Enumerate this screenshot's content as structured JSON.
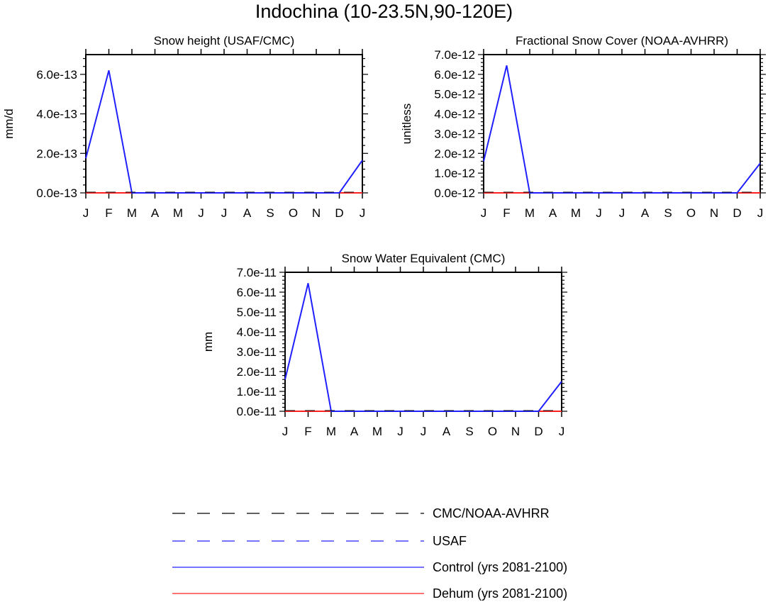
{
  "title": "Indochina (10-23.5N,90-120E)",
  "colors": {
    "obs": "#000000",
    "usaf": "#2020ff",
    "control": "#2020ff",
    "dehum": "#ff2020"
  },
  "legend": [
    {
      "label": "CMC/NOAA-AVHRR",
      "color": "#000000",
      "dash": true
    },
    {
      "label": "USAF",
      "color": "#2020ff",
      "dash": true
    },
    {
      "label": "Control (yrs 2081-2100)",
      "color": "#2020ff",
      "dash": false
    },
    {
      "label": "Dehum (yrs 2081-2100)",
      "color": "#ff2020",
      "dash": false
    }
  ],
  "chart_data": [
    {
      "type": "line",
      "title": "Snow height (USAF/CMC)",
      "ylabel": "mm/d",
      "categories": [
        "J",
        "F",
        "M",
        "A",
        "M",
        "J",
        "J",
        "A",
        "S",
        "O",
        "N",
        "D",
        "J"
      ],
      "yticks": [
        "0.0e-13",
        "2.0e-13",
        "4.0e-13",
        "6.0e-13"
      ],
      "ylim": [
        0,
        7e-13
      ],
      "series": [
        {
          "color": "control",
          "values": [
            1.75e-13,
            6.2e-13,
            0,
            0,
            0,
            0,
            0,
            0,
            0,
            0,
            0,
            0,
            1.65e-13
          ]
        },
        {
          "color": "dehum",
          "values": [
            0,
            0,
            0,
            0,
            0,
            0,
            0,
            0,
            0,
            0,
            0,
            0,
            0
          ]
        }
      ]
    },
    {
      "type": "line",
      "title": "Fractional Snow Cover (NOAA-AVHRR)",
      "ylabel": "unitless",
      "categories": [
        "J",
        "F",
        "M",
        "A",
        "M",
        "J",
        "J",
        "A",
        "S",
        "O",
        "N",
        "D",
        "J"
      ],
      "yticks": [
        "0.0e-12",
        "1.0e-12",
        "2.0e-12",
        "3.0e-12",
        "4.0e-12",
        "5.0e-12",
        "6.0e-12",
        "7.0e-12"
      ],
      "ylim": [
        0,
        7e-12
      ],
      "series": [
        {
          "color": "control",
          "values": [
            1.6e-12,
            6.45e-12,
            0,
            0,
            0,
            0,
            0,
            0,
            0,
            0,
            0,
            0,
            1.5e-12
          ]
        },
        {
          "color": "dehum",
          "values": [
            0,
            0,
            0,
            0,
            0,
            0,
            0,
            0,
            0,
            0,
            0,
            0,
            0
          ]
        }
      ]
    },
    {
      "type": "line",
      "title": "Snow Water Equivalent (CMC)",
      "ylabel": "mm",
      "categories": [
        "J",
        "F",
        "M",
        "A",
        "M",
        "J",
        "J",
        "A",
        "S",
        "O",
        "N",
        "D",
        "J"
      ],
      "yticks": [
        "0.0e-11",
        "1.0e-11",
        "2.0e-11",
        "3.0e-11",
        "4.0e-11",
        "5.0e-11",
        "6.0e-11",
        "7.0e-11"
      ],
      "ylim": [
        0,
        7e-11
      ],
      "series": [
        {
          "color": "control",
          "values": [
            1.6e-11,
            6.45e-11,
            0,
            0,
            0,
            0,
            0,
            0,
            0,
            0,
            0,
            0,
            1.5e-11
          ]
        },
        {
          "color": "dehum",
          "values": [
            0,
            0,
            0,
            0,
            0,
            0,
            0,
            0,
            0,
            0,
            0,
            0,
            0
          ]
        }
      ]
    }
  ]
}
